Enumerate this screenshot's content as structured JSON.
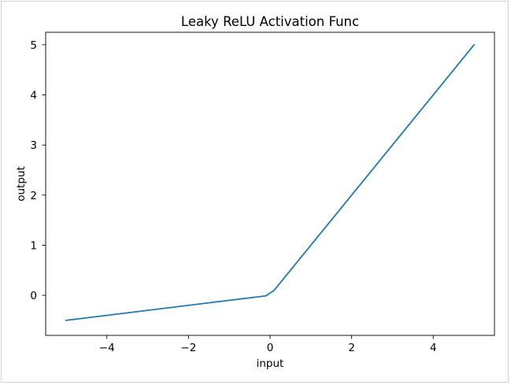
{
  "chart_data": {
    "type": "line",
    "title": "Leaky ReLU Activation Func",
    "xlabel": "input",
    "ylabel": "output",
    "xlim": [
      -5.5,
      5.5
    ],
    "ylim": [
      -0.8,
      5.25
    ],
    "xticks": [
      -4,
      -2,
      0,
      2,
      4
    ],
    "xtick_labels": [
      "−4",
      "−2",
      "0",
      "2",
      "4"
    ],
    "yticks": [
      0,
      1,
      2,
      3,
      4,
      5
    ],
    "ytick_labels": [
      "0",
      "1",
      "2",
      "3",
      "4",
      "5"
    ],
    "grid": false,
    "legend": "none",
    "series": [
      {
        "color": "#1f77b4",
        "x": [
          -5.0,
          -0.1,
          0.1,
          5.0
        ],
        "y": [
          -0.5,
          -0.01,
          0.1,
          5.0
        ]
      }
    ]
  }
}
